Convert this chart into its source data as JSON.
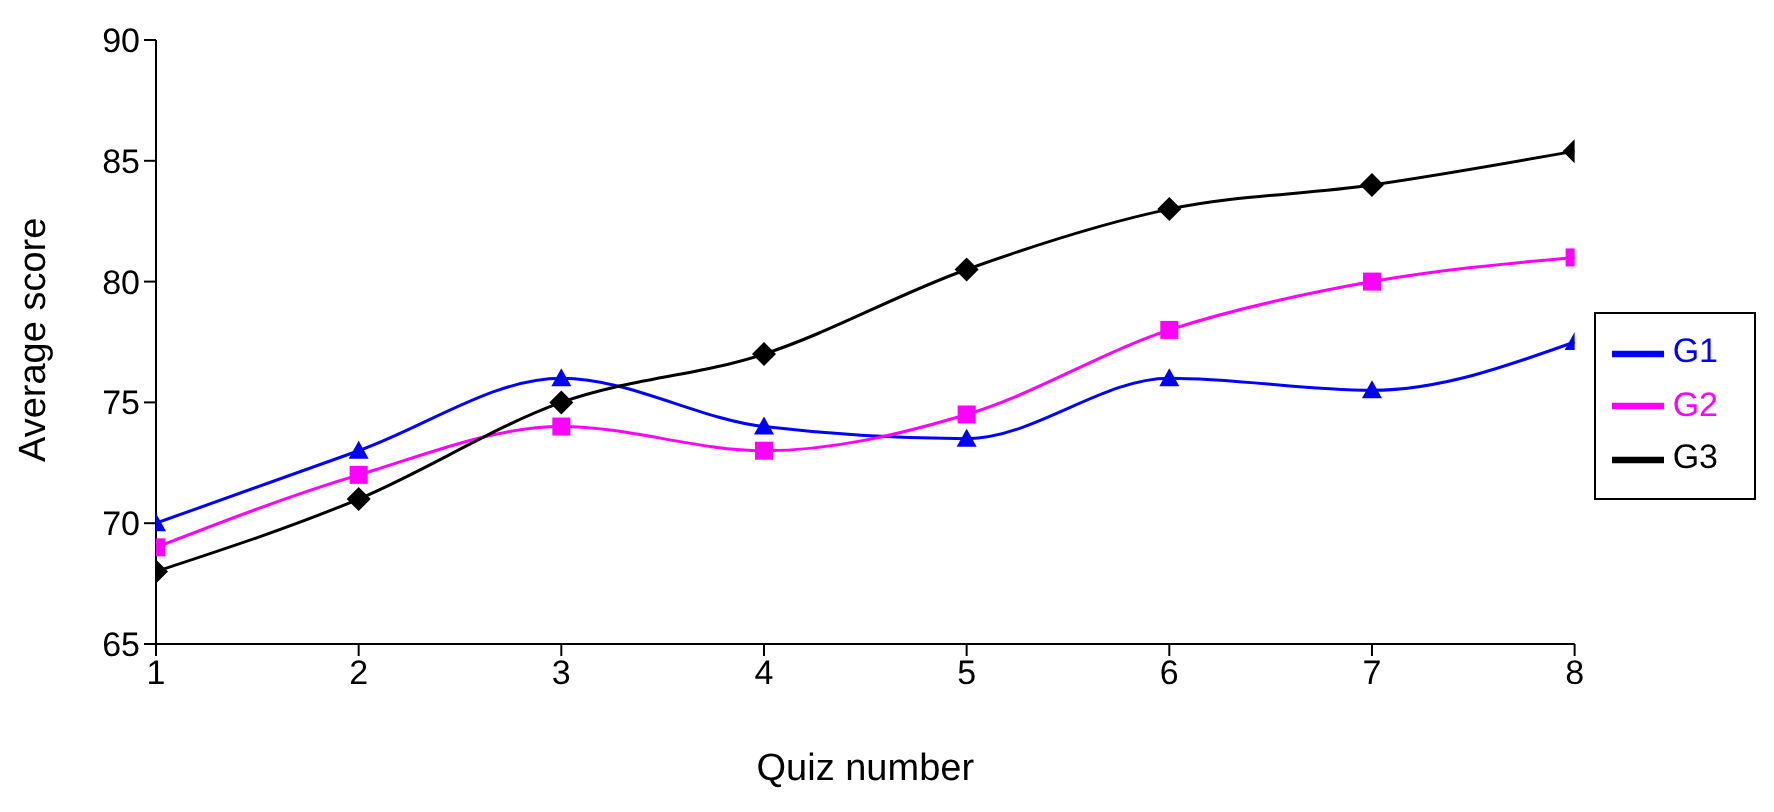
{
  "chart_data": {
    "type": "line",
    "xlabel": "Quiz number",
    "ylabel": "Average score",
    "x": [
      1,
      2,
      3,
      4,
      5,
      6,
      7,
      8
    ],
    "xlim": [
      1,
      8
    ],
    "xticks": [
      1,
      2,
      3,
      4,
      5,
      6,
      7,
      8
    ],
    "ylim": [
      65,
      90
    ],
    "yticks": [
      65,
      70,
      75,
      80,
      85,
      90
    ],
    "grid": false,
    "legend": "right",
    "line_style": "solid",
    "series": [
      {
        "name": "G1",
        "color": "#0000ff",
        "marker": "triangle",
        "values": [
          70,
          73,
          76,
          74,
          73.5,
          76,
          75.5,
          77.5
        ]
      },
      {
        "name": "G2",
        "color": "#ff00ff",
        "marker": "square",
        "values": [
          69,
          72,
          74,
          73,
          74.5,
          78,
          80,
          81
        ]
      },
      {
        "name": "G3",
        "color": "#000000",
        "marker": "diamond",
        "values": [
          68,
          71,
          75,
          77,
          80.5,
          83,
          84,
          85.4
        ]
      }
    ]
  }
}
